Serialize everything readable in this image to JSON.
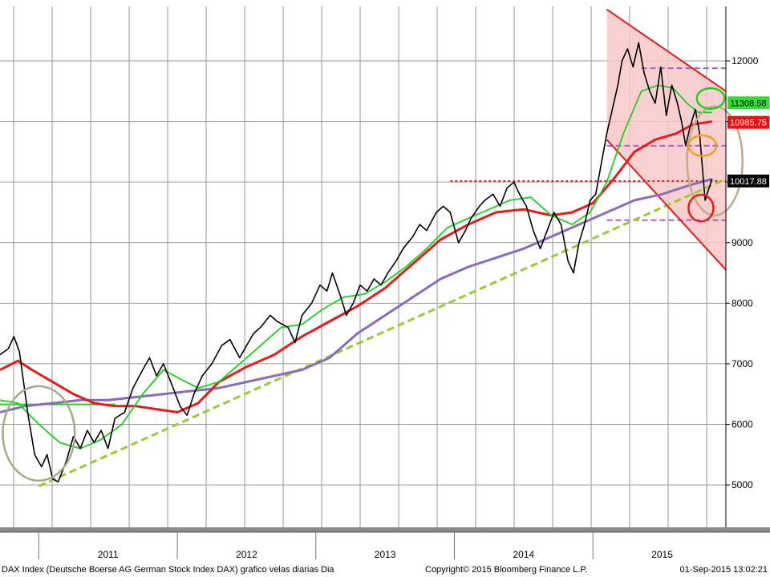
{
  "chart_data": {
    "type": "line",
    "title": "",
    "footer_left": "DAX Index (Deutsche Boerse AG German Stock Index DAX) grafico velas diarias  Dia",
    "footer_center": "Copyright© 2015 Bloomberg Finance L.P.",
    "footer_right": "01-Sep-2015 13:02:21",
    "ylim": [
      4300,
      12900
    ],
    "xlim": [
      2010.72,
      2015.96
    ],
    "y_ticks": [
      5000,
      6000,
      7000,
      8000,
      9000,
      10000,
      11000,
      12000
    ],
    "y_tick_labels": [
      "5000",
      "6000",
      "7000",
      "8000",
      "9000",
      "10000",
      "11000",
      "12000"
    ],
    "x_labels": [
      {
        "label": "2011",
        "x": 2011.5
      },
      {
        "label": "2012",
        "x": 2012.5
      },
      {
        "label": "2013",
        "x": 2013.5
      },
      {
        "label": "2014",
        "x": 2014.5
      },
      {
        "label": "2015",
        "x": 2015.5
      }
    ],
    "x_year_boundaries": [
      2011.0,
      2012.0,
      2013.0,
      2014.0,
      2015.0,
      2016.0
    ],
    "price_badges": [
      {
        "value": 11308.58,
        "label": "11308.58",
        "bg": "#33dd33",
        "fg": "#000000"
      },
      {
        "value": 10985.75,
        "label": "10985.75",
        "bg": "#ee1111",
        "fg": "#ffffff"
      },
      {
        "value": 10017.88,
        "label": "10017.88",
        "bg": "#000000",
        "fg": "#ffffff"
      }
    ],
    "series": [
      {
        "role": "price",
        "color": "#000000",
        "points": [
          [
            2010.72,
            7150
          ],
          [
            2010.78,
            7250
          ],
          [
            2010.82,
            7450
          ],
          [
            2010.86,
            7200
          ],
          [
            2010.92,
            6200
          ],
          [
            2010.97,
            5500
          ],
          [
            2011.02,
            5300
          ],
          [
            2011.06,
            5500
          ],
          [
            2011.1,
            5100
          ],
          [
            2011.14,
            5050
          ],
          [
            2011.2,
            5400
          ],
          [
            2011.25,
            5800
          ],
          [
            2011.3,
            5600
          ],
          [
            2011.35,
            5900
          ],
          [
            2011.4,
            5700
          ],
          [
            2011.45,
            5900
          ],
          [
            2011.5,
            5600
          ],
          [
            2011.55,
            6100
          ],
          [
            2011.62,
            6200
          ],
          [
            2011.68,
            6600
          ],
          [
            2011.75,
            6900
          ],
          [
            2011.8,
            7100
          ],
          [
            2011.85,
            6800
          ],
          [
            2011.9,
            7000
          ],
          [
            2011.97,
            6600
          ],
          [
            2012.02,
            6300
          ],
          [
            2012.07,
            6150
          ],
          [
            2012.12,
            6500
          ],
          [
            2012.18,
            6800
          ],
          [
            2012.25,
            7000
          ],
          [
            2012.32,
            7300
          ],
          [
            2012.38,
            7400
          ],
          [
            2012.45,
            7100
          ],
          [
            2012.5,
            7300
          ],
          [
            2012.55,
            7500
          ],
          [
            2012.6,
            7600
          ],
          [
            2012.67,
            7800
          ],
          [
            2012.72,
            7700
          ],
          [
            2012.8,
            7600
          ],
          [
            2012.85,
            7350
          ],
          [
            2012.9,
            7800
          ],
          [
            2012.97,
            8000
          ],
          [
            2013.03,
            8300
          ],
          [
            2013.08,
            8200
          ],
          [
            2013.12,
            8500
          ],
          [
            2013.18,
            8100
          ],
          [
            2013.22,
            7800
          ],
          [
            2013.27,
            8000
          ],
          [
            2013.32,
            8300
          ],
          [
            2013.37,
            8200
          ],
          [
            2013.42,
            8400
          ],
          [
            2013.47,
            8300
          ],
          [
            2013.52,
            8500
          ],
          [
            2013.58,
            8700
          ],
          [
            2013.63,
            8900
          ],
          [
            2013.7,
            9100
          ],
          [
            2013.75,
            9300
          ],
          [
            2013.8,
            9200
          ],
          [
            2013.87,
            9500
          ],
          [
            2013.92,
            9600
          ],
          [
            2013.97,
            9500
          ],
          [
            2014.03,
            9000
          ],
          [
            2014.08,
            9200
          ],
          [
            2014.12,
            9400
          ],
          [
            2014.18,
            9600
          ],
          [
            2014.22,
            9700
          ],
          [
            2014.28,
            9800
          ],
          [
            2014.33,
            9600
          ],
          [
            2014.38,
            9900
          ],
          [
            2014.43,
            10000
          ],
          [
            2014.47,
            9800
          ],
          [
            2014.52,
            9600
          ],
          [
            2014.57,
            9200
          ],
          [
            2014.62,
            8900
          ],
          [
            2014.67,
            9200
          ],
          [
            2014.72,
            9500
          ],
          [
            2014.77,
            9300
          ],
          [
            2014.82,
            8700
          ],
          [
            2014.86,
            8500
          ],
          [
            2014.9,
            9000
          ],
          [
            2014.94,
            9300
          ],
          [
            2014.98,
            9700
          ],
          [
            2015.02,
            9800
          ],
          [
            2015.06,
            10300
          ],
          [
            2015.1,
            10800
          ],
          [
            2015.14,
            11200
          ],
          [
            2015.18,
            11600
          ],
          [
            2015.21,
            12000
          ],
          [
            2015.25,
            12200
          ],
          [
            2015.29,
            11900
          ],
          [
            2015.33,
            12300
          ],
          [
            2015.37,
            11800
          ],
          [
            2015.41,
            11500
          ],
          [
            2015.45,
            11300
          ],
          [
            2015.49,
            11900
          ],
          [
            2015.53,
            11100
          ],
          [
            2015.57,
            11600
          ],
          [
            2015.61,
            11300
          ],
          [
            2015.64,
            11000
          ],
          [
            2015.67,
            10600
          ],
          [
            2015.7,
            10900
          ],
          [
            2015.74,
            11200
          ],
          [
            2015.77,
            10800
          ],
          [
            2015.81,
            9700
          ],
          [
            2015.86,
            10050
          ]
        ]
      },
      {
        "role": "moving-average-short",
        "color": "#1fd11f",
        "points": [
          [
            2010.72,
            6400
          ],
          [
            2010.85,
            6350
          ],
          [
            2011.0,
            6000
          ],
          [
            2011.15,
            5700
          ],
          [
            2011.3,
            5600
          ],
          [
            2011.45,
            5750
          ],
          [
            2011.6,
            6000
          ],
          [
            2011.75,
            6500
          ],
          [
            2011.9,
            6900
          ],
          [
            2012.02,
            6750
          ],
          [
            2012.15,
            6600
          ],
          [
            2012.3,
            6700
          ],
          [
            2012.45,
            7000
          ],
          [
            2012.6,
            7300
          ],
          [
            2012.75,
            7600
          ],
          [
            2012.9,
            7650
          ],
          [
            2013.05,
            7900
          ],
          [
            2013.2,
            8100
          ],
          [
            2013.35,
            8150
          ],
          [
            2013.5,
            8350
          ],
          [
            2013.65,
            8600
          ],
          [
            2013.8,
            8900
          ],
          [
            2013.95,
            9250
          ],
          [
            2014.1,
            9400
          ],
          [
            2014.25,
            9550
          ],
          [
            2014.4,
            9700
          ],
          [
            2014.55,
            9750
          ],
          [
            2014.7,
            9450
          ],
          [
            2014.85,
            9300
          ],
          [
            2014.98,
            9500
          ],
          [
            2015.1,
            10000
          ],
          [
            2015.22,
            10800
          ],
          [
            2015.35,
            11500
          ],
          [
            2015.47,
            11600
          ],
          [
            2015.58,
            11550
          ],
          [
            2015.68,
            11300
          ],
          [
            2015.76,
            11150
          ],
          [
            2015.86,
            11150
          ]
        ]
      },
      {
        "role": "moving-average-mid",
        "color": "#e51c1c",
        "points": [
          [
            2010.72,
            6900
          ],
          [
            2010.85,
            7050
          ],
          [
            2010.95,
            6900
          ],
          [
            2011.1,
            6700
          ],
          [
            2011.25,
            6500
          ],
          [
            2011.4,
            6350
          ],
          [
            2011.55,
            6300
          ],
          [
            2011.7,
            6300
          ],
          [
            2011.85,
            6250
          ],
          [
            2012.0,
            6200
          ],
          [
            2012.15,
            6350
          ],
          [
            2012.3,
            6700
          ],
          [
            2012.5,
            6950
          ],
          [
            2012.7,
            7150
          ],
          [
            2012.9,
            7450
          ],
          [
            2013.1,
            7700
          ],
          [
            2013.3,
            7950
          ],
          [
            2013.5,
            8250
          ],
          [
            2013.7,
            8650
          ],
          [
            2013.9,
            9050
          ],
          [
            2014.1,
            9300
          ],
          [
            2014.3,
            9500
          ],
          [
            2014.5,
            9550
          ],
          [
            2014.7,
            9450
          ],
          [
            2014.85,
            9500
          ],
          [
            2015.0,
            9650
          ],
          [
            2015.15,
            10050
          ],
          [
            2015.3,
            10500
          ],
          [
            2015.45,
            10700
          ],
          [
            2015.6,
            10800
          ],
          [
            2015.72,
            10950
          ],
          [
            2015.86,
            11000
          ]
        ]
      },
      {
        "role": "moving-average-long",
        "color": "#8b6cb8",
        "points": [
          [
            2010.72,
            6200
          ],
          [
            2010.9,
            6300
          ],
          [
            2011.1,
            6350
          ],
          [
            2011.3,
            6400
          ],
          [
            2011.5,
            6400
          ],
          [
            2011.7,
            6450
          ],
          [
            2011.9,
            6500
          ],
          [
            2012.1,
            6550
          ],
          [
            2012.3,
            6600
          ],
          [
            2012.5,
            6700
          ],
          [
            2012.7,
            6800
          ],
          [
            2012.9,
            6900
          ],
          [
            2013.1,
            7100
          ],
          [
            2013.3,
            7500
          ],
          [
            2013.5,
            7800
          ],
          [
            2013.7,
            8100
          ],
          [
            2013.9,
            8400
          ],
          [
            2014.1,
            8600
          ],
          [
            2014.3,
            8750
          ],
          [
            2014.5,
            8900
          ],
          [
            2014.7,
            9100
          ],
          [
            2014.9,
            9300
          ],
          [
            2015.1,
            9500
          ],
          [
            2015.3,
            9700
          ],
          [
            2015.5,
            9800
          ],
          [
            2015.7,
            9950
          ],
          [
            2015.86,
            10050
          ]
        ]
      }
    ],
    "annotations": {
      "trendline": {
        "color": "#99cc33",
        "from": [
          2011.0,
          4980
        ],
        "to": [
          2015.96,
          10050
        ]
      },
      "channel_upper": {
        "color": "#e51c1c",
        "from": [
          2015.1,
          12850
        ],
        "to": [
          2015.96,
          11500
        ]
      },
      "channel_lower": {
        "color": "#e51c1c",
        "from": [
          2015.1,
          10700
        ],
        "to": [
          2015.96,
          8550
        ]
      },
      "channel_fill": "#f8c8c8",
      "horizontal_levels": [
        {
          "y": 10017.88,
          "from_x": 2013.97,
          "to_x": 2015.96,
          "color": "#d92020",
          "style": "dotted-red"
        },
        {
          "y": 11880,
          "from_x": 2015.35,
          "to_x": 2015.96,
          "color": "#b05cc8",
          "style": "dashed-purple"
        },
        {
          "y": 10600,
          "from_x": 2015.1,
          "to_x": 2015.96,
          "color": "#b05cc8",
          "style": "dashed-purple"
        },
        {
          "y": 9370,
          "from_x": 2015.1,
          "to_x": 2015.96,
          "color": "#b05cc8",
          "style": "dashed-purple"
        },
        {
          "y": 6330,
          "from_x": 2010.72,
          "to_x": 2011.55,
          "color": "#1fd11f",
          "style": "solid-green"
        }
      ],
      "circles": [
        {
          "cx": 2011.0,
          "cy": 5850,
          "rx": 0.26,
          "ry": 780,
          "color": "#a8a88a"
        },
        {
          "cx": 2015.88,
          "cy": 10350,
          "rx": 0.2,
          "ry": 900,
          "color": "#c8a88a"
        },
        {
          "cx": 2015.85,
          "cy": 11380,
          "rx": 0.1,
          "ry": 170,
          "color": "#1fd11f"
        },
        {
          "cx": 2015.79,
          "cy": 10600,
          "rx": 0.1,
          "ry": 170,
          "color": "#f0a020"
        },
        {
          "cx": 2015.78,
          "cy": 9570,
          "rx": 0.09,
          "ry": 220,
          "color": "#e51c1c"
        }
      ]
    }
  }
}
